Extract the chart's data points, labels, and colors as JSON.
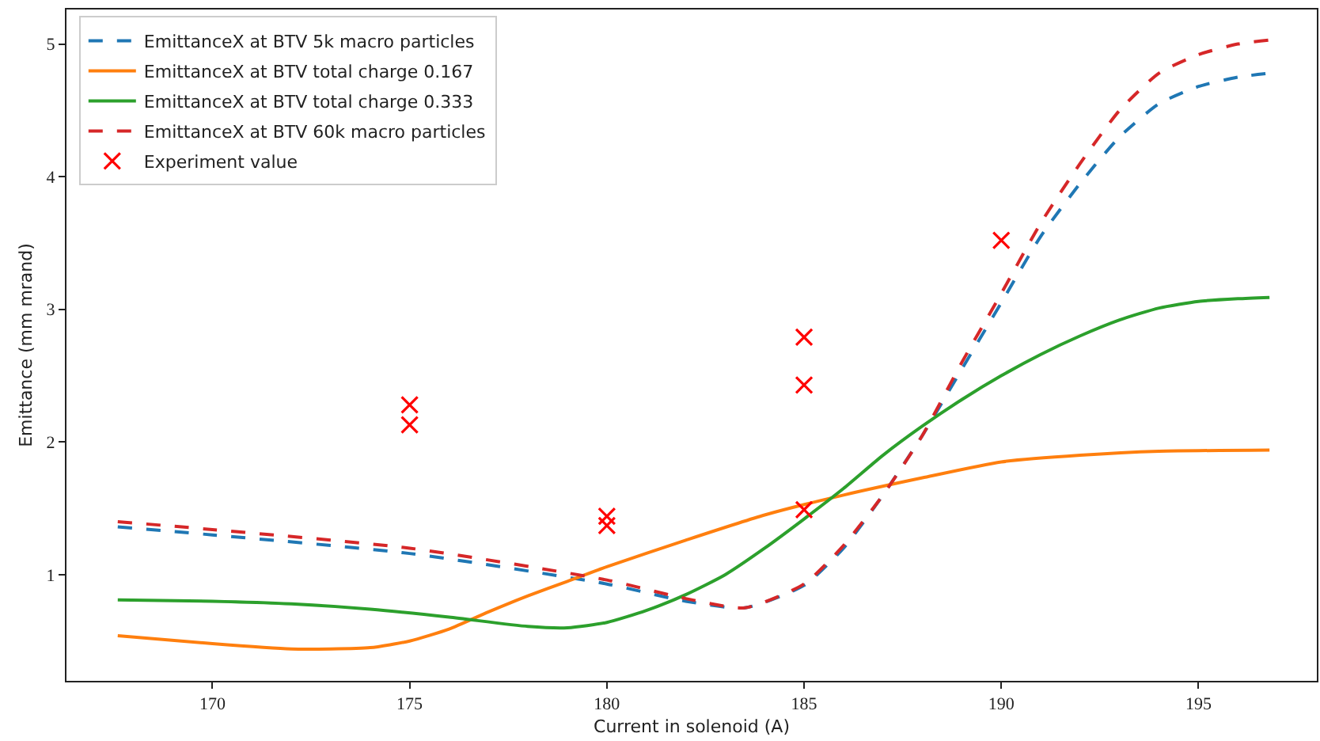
{
  "chart_data": {
    "type": "line",
    "xlabel": "Current in solenoid (A)",
    "ylabel": "Emittance (mm mrand)",
    "xlim": [
      166.3,
      198.0
    ],
    "xticks": [
      170,
      175,
      180,
      185,
      190,
      195
    ],
    "ylim": [
      0.2,
      5.26
    ],
    "yticks": [
      1,
      2,
      3,
      4,
      5
    ],
    "legend": "top left",
    "series": [
      {
        "name": "EmittanceX at BTV 5k macro particles",
        "color": "#1f77b4",
        "line_style": "dashed",
        "marker": "none",
        "x": [
          167.6,
          170,
          175,
          180,
          182,
          183.5,
          185,
          186,
          187,
          188,
          189,
          190,
          191,
          192,
          193,
          194,
          195,
          196,
          196.8
        ],
        "values": [
          1.36,
          1.3,
          1.16,
          0.93,
          0.8,
          0.75,
          0.92,
          1.2,
          1.6,
          2.05,
          2.55,
          3.05,
          3.55,
          3.95,
          4.3,
          4.55,
          4.68,
          4.75,
          4.78
        ]
      },
      {
        "name": "EmittanceX at BTV total charge 0.167",
        "color": "#ff7f0e",
        "line_style": "solid",
        "marker": "none",
        "x": [
          167.6,
          170,
          172,
          173,
          174,
          175,
          176,
          177,
          178,
          179,
          180,
          182,
          184,
          186,
          188,
          190,
          192,
          194,
          196.8
        ],
        "values": [
          0.54,
          0.48,
          0.44,
          0.44,
          0.45,
          0.5,
          0.59,
          0.72,
          0.84,
          0.95,
          1.06,
          1.26,
          1.45,
          1.6,
          1.73,
          1.85,
          1.9,
          1.93,
          1.94
        ]
      },
      {
        "name": "EmittanceX at BTV total charge 0.333",
        "color": "#2ca02c",
        "line_style": "solid",
        "marker": "none",
        "x": [
          167.6,
          170,
          172,
          174,
          176,
          178,
          179,
          180,
          181,
          182,
          183,
          184,
          185,
          186,
          187,
          188,
          189,
          190,
          191,
          192,
          193,
          194,
          195,
          196,
          196.8
        ],
        "values": [
          0.81,
          0.8,
          0.78,
          0.74,
          0.68,
          0.61,
          0.6,
          0.64,
          0.73,
          0.85,
          1.0,
          1.2,
          1.42,
          1.65,
          1.9,
          2.12,
          2.32,
          2.5,
          2.66,
          2.8,
          2.92,
          3.01,
          3.06,
          3.08,
          3.09
        ]
      },
      {
        "name": "EmittanceX at BTV 60k macro particles",
        "color": "#d62728",
        "line_style": "dashed",
        "marker": "none",
        "x": [
          167.6,
          170,
          175,
          180,
          182,
          183.5,
          185,
          186,
          187,
          188,
          189,
          190,
          191,
          192,
          193,
          194,
          195,
          196,
          196.8
        ],
        "values": [
          1.4,
          1.34,
          1.2,
          0.96,
          0.82,
          0.75,
          0.93,
          1.22,
          1.6,
          2.05,
          2.6,
          3.12,
          3.65,
          4.1,
          4.5,
          4.78,
          4.92,
          5.0,
          5.03
        ]
      },
      {
        "name": "Experiment value",
        "type": "scatter",
        "color": "#ff0000",
        "marker": "cross",
        "x": [
          175,
          175,
          180,
          180,
          185,
          185,
          185,
          190
        ],
        "values": [
          2.28,
          2.13,
          1.44,
          1.37,
          2.79,
          2.43,
          1.49,
          3.52
        ]
      }
    ]
  }
}
